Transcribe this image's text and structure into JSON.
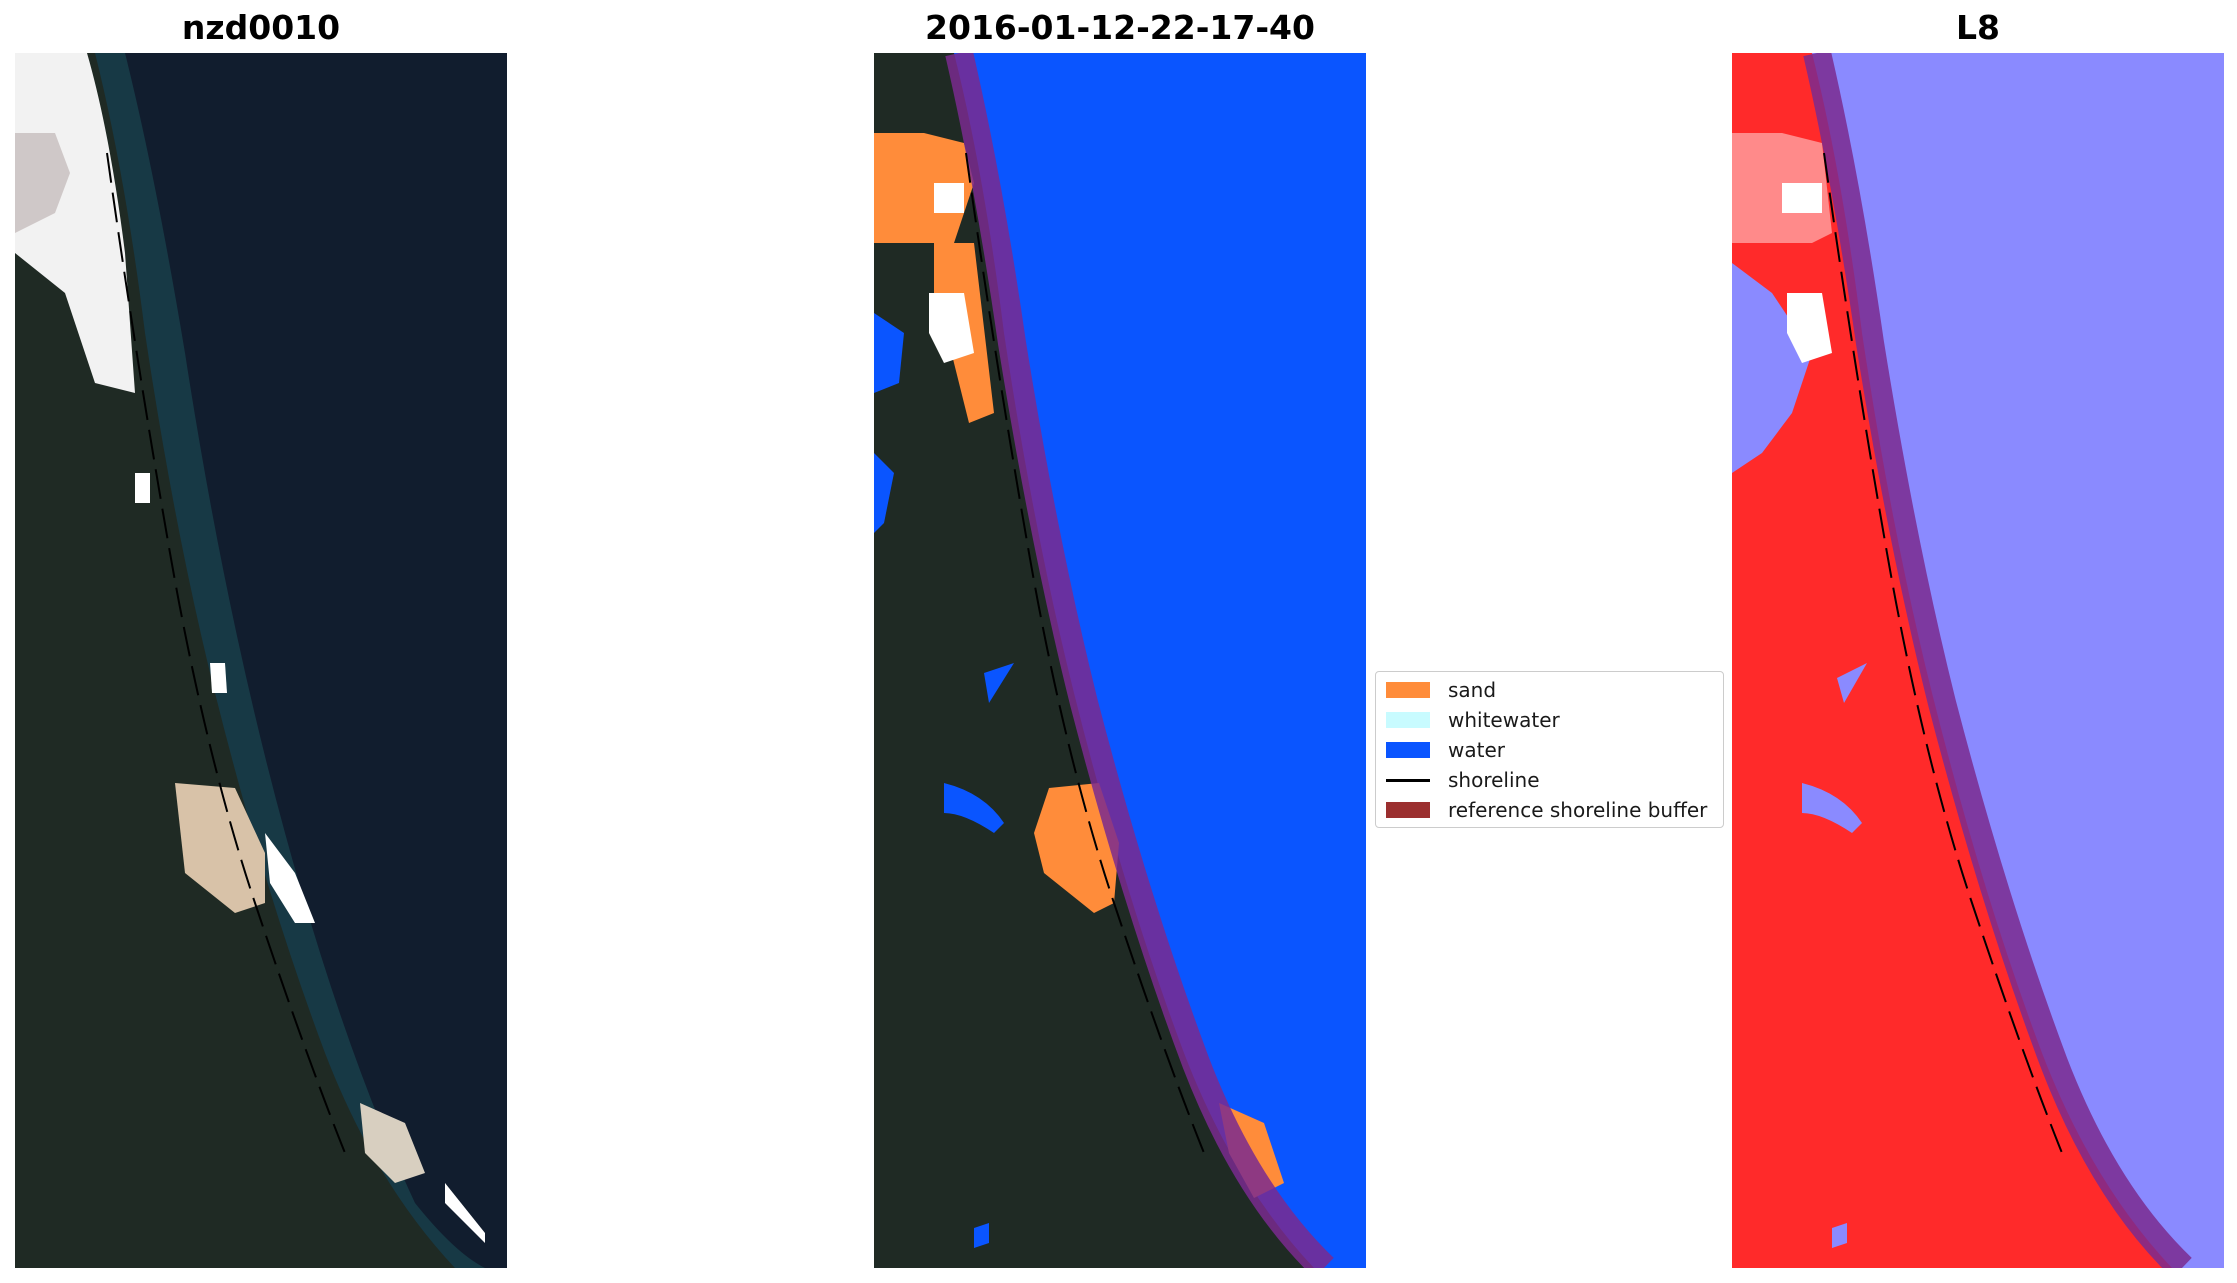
{
  "panels": [
    {
      "title": "nzd0010",
      "kind": "rgb"
    },
    {
      "title": "2016-01-12-22-17-40",
      "kind": "classified"
    },
    {
      "title": "L8",
      "kind": "mndwi"
    }
  ],
  "legend": {
    "items": [
      {
        "label": "sand",
        "color": "#ff8c3a",
        "type": "patch"
      },
      {
        "label": "whitewater",
        "color": "#c8fbff",
        "type": "patch"
      },
      {
        "label": "water",
        "color": "#0a55ff",
        "type": "patch"
      },
      {
        "label": "shoreline",
        "color": "#000000",
        "type": "line"
      },
      {
        "label": "reference shoreline buffer",
        "color": "#9b2f2f",
        "type": "patch"
      }
    ]
  },
  "colors": {
    "ocean_rgb": "#111d2e",
    "land_rgb": "#1f2a24",
    "water_class": "#0a55ff",
    "sand_class": "#ff8c3a",
    "buffer_overlay": "#7a2a8f",
    "land_index": "#ff2a2a",
    "water_index": "#8a8aff"
  }
}
